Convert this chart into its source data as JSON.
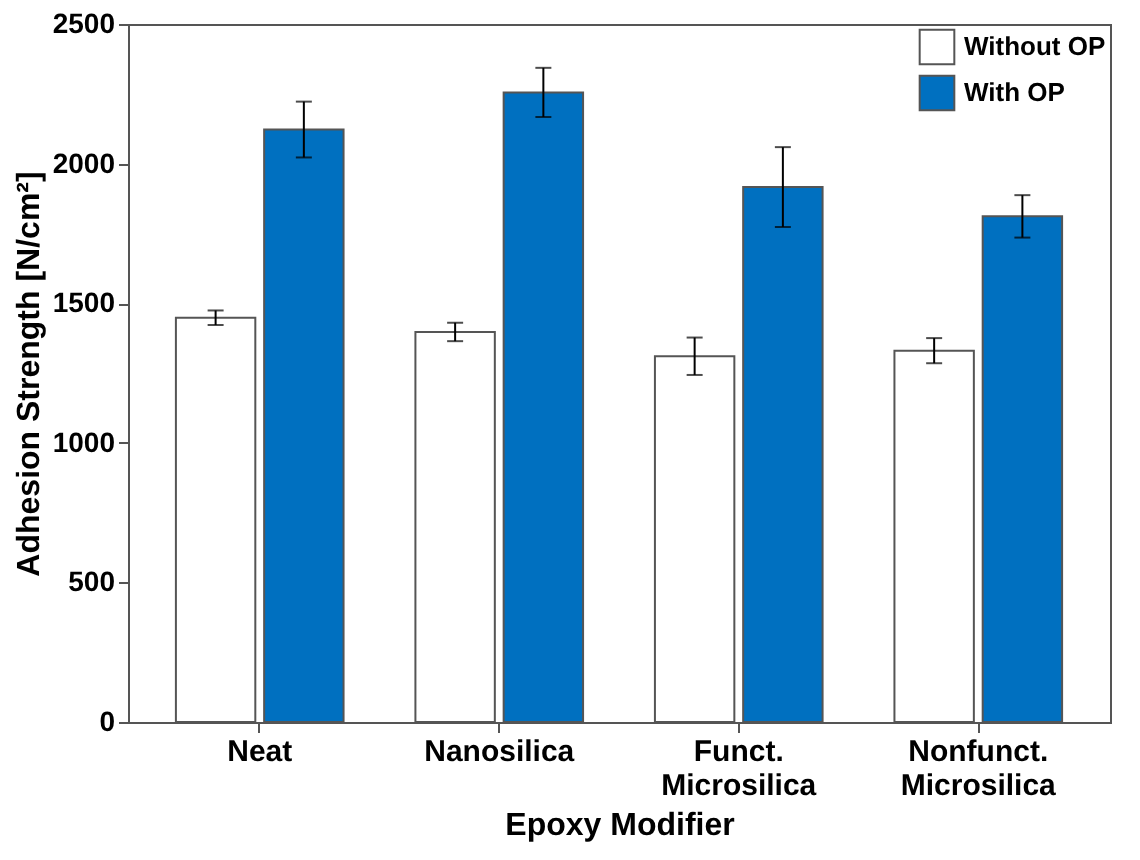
{
  "chart_data": {
    "type": "bar",
    "xlabel": "Epoxy Modifier",
    "ylabel": "Adhesion Strength [N/cm²]",
    "categories": [
      "Neat",
      "Nanosilica",
      "Funct. Microsilica",
      "Nonfunct. Microsilica"
    ],
    "series": [
      {
        "name": "Without OP",
        "color": "#ffffff",
        "values": [
          1448,
          1397,
          1310,
          1330
        ],
        "errors": [
          26,
          33,
          67,
          45
        ]
      },
      {
        "name": "With OP",
        "color": "#0070c0",
        "values": [
          2122,
          2255,
          1916,
          1811
        ],
        "errors": [
          100,
          88,
          143,
          76
        ]
      }
    ],
    "ylim": [
      0,
      2500
    ],
    "yticks": [
      0,
      500,
      1000,
      1500,
      2000,
      2500
    ],
    "grid": false,
    "legend": "top right"
  }
}
